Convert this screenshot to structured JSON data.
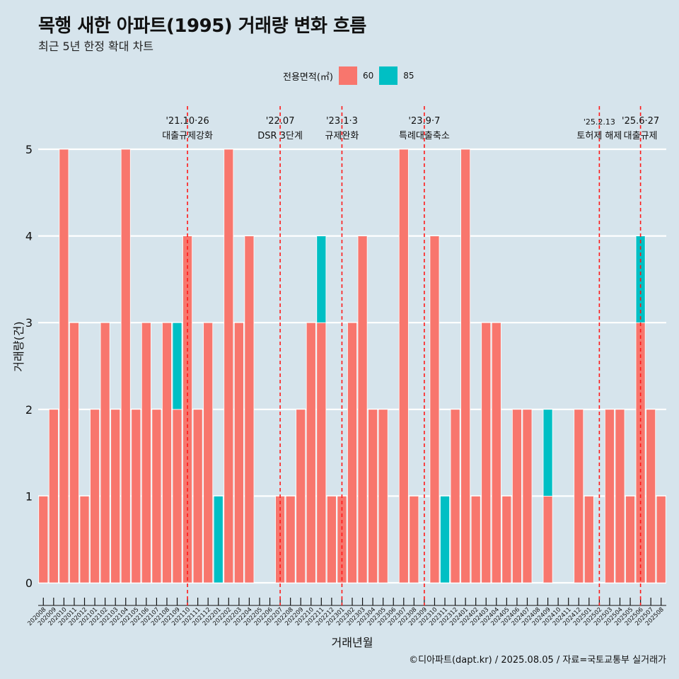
{
  "header": {
    "title": "목행 새한 아파트(1995) 거래량 변화 흐름",
    "subtitle": "최근 5년 한정 확대 차트"
  },
  "legend": {
    "title": "전용면적(㎡)",
    "items": [
      {
        "label": "60",
        "color": "#f8766d"
      },
      {
        "label": "85",
        "color": "#00bfc4"
      }
    ]
  },
  "caption": "©디아파트(dapt.kr) / 2025.08.05 / 자료=국토교통부 실거래가",
  "chart_data": {
    "type": "bar",
    "stacked": true,
    "xlabel": "거래년월",
    "ylabel": "거래량(건)",
    "ylim": [
      0,
      5
    ],
    "y_ticks": [
      0,
      1,
      2,
      3,
      4,
      5
    ],
    "grid": "horizontal",
    "legend_position": "top",
    "categories": [
      "202008",
      "202009",
      "202010",
      "202011",
      "202012",
      "202101",
      "202102",
      "202103",
      "202104",
      "202105",
      "202106",
      "202107",
      "202108",
      "202109",
      "202110",
      "202111",
      "202112",
      "202201",
      "202202",
      "202203",
      "202204",
      "202205",
      "202206",
      "202207",
      "202208",
      "202209",
      "202210",
      "202211",
      "202212",
      "202301",
      "202302",
      "202303",
      "202304",
      "202305",
      "202306",
      "202307",
      "202308",
      "202309",
      "202310",
      "202311",
      "202312",
      "202401",
      "202402",
      "202403",
      "202404",
      "202405",
      "202406",
      "202407",
      "202408",
      "202409",
      "202410",
      "202411",
      "202412",
      "202501",
      "202502",
      "202503",
      "202504",
      "202505",
      "202506",
      "202507",
      "202508"
    ],
    "series": [
      {
        "name": "60",
        "color": "#f8766d",
        "values": [
          1,
          2,
          5,
          3,
          1,
          2,
          3,
          2,
          5,
          2,
          3,
          2,
          3,
          2,
          4,
          2,
          3,
          0,
          5,
          3,
          4,
          0,
          0,
          1,
          1,
          2,
          3,
          3,
          1,
          1,
          3,
          4,
          2,
          2,
          0,
          5,
          1,
          0,
          4,
          0,
          2,
          5,
          1,
          3,
          3,
          1,
          2,
          2,
          0,
          1,
          0,
          0,
          2,
          1,
          0,
          2,
          2,
          1,
          3,
          2,
          1
        ]
      },
      {
        "name": "85",
        "color": "#00bfc4",
        "values": [
          0,
          0,
          0,
          0,
          0,
          0,
          0,
          0,
          0,
          0,
          0,
          0,
          0,
          1,
          0,
          0,
          0,
          1,
          0,
          0,
          0,
          0,
          0,
          0,
          0,
          0,
          0,
          1,
          0,
          0,
          0,
          0,
          0,
          0,
          0,
          0,
          0,
          0,
          0,
          1,
          0,
          0,
          0,
          0,
          0,
          0,
          0,
          0,
          0,
          1,
          0,
          0,
          0,
          0,
          0,
          0,
          0,
          0,
          1,
          0,
          0
        ]
      }
    ],
    "annotations": [
      {
        "date": "'21.10·26",
        "text": "대출규제강화",
        "at": "202110"
      },
      {
        "date": "'22.07",
        "text": "DSR 3단계",
        "at": "202207"
      },
      {
        "date": "'23.1·3",
        "text": "규제완화",
        "at": "202301"
      },
      {
        "date": "'23.9·7",
        "text": "특례대출축소",
        "at": "202309"
      },
      {
        "date": "'25.2.13",
        "text": "토허제 해제",
        "at": "202502"
      },
      {
        "date": "'25.6·27",
        "text": "대출규제",
        "at": "202506"
      }
    ]
  }
}
